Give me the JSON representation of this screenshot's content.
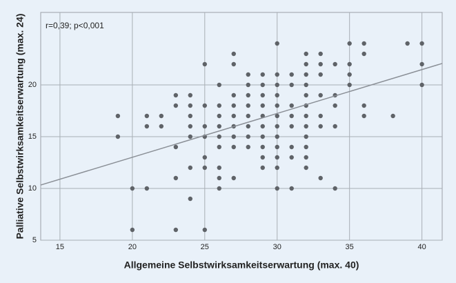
{
  "chart_data": {
    "type": "scatter",
    "xlabel": "Allgemeine Selbstwirksamkeitserwartung (max. 40)",
    "ylabel": "Palliative Selbstwirksamkeitserwartung (max. 24)",
    "annotation": "r=0,39; p<0,001",
    "color": "#5f6368",
    "grid": true,
    "xlim": [
      13.67,
      41.4
    ],
    "ylim": [
      5,
      27
    ],
    "xticks": [
      15,
      20,
      25,
      30,
      35,
      40
    ],
    "yticks": [
      5,
      10,
      15,
      20
    ],
    "x": [
      19,
      19,
      20,
      20,
      21,
      21,
      21,
      22,
      22,
      23,
      23,
      23,
      23,
      23,
      24,
      24,
      24,
      24,
      24,
      24,
      24,
      25,
      25,
      25,
      25,
      25,
      25,
      25,
      26,
      26,
      26,
      26,
      26,
      26,
      26,
      26,
      26,
      27,
      27,
      27,
      27,
      27,
      27,
      27,
      27,
      27,
      28,
      28,
      28,
      28,
      28,
      28,
      28,
      28,
      29,
      29,
      29,
      29,
      29,
      29,
      29,
      29,
      29,
      29,
      30,
      30,
      30,
      30,
      30,
      30,
      30,
      30,
      30,
      30,
      30,
      30,
      31,
      31,
      31,
      31,
      31,
      31,
      31,
      31,
      32,
      32,
      32,
      32,
      32,
      32,
      32,
      32,
      32,
      32,
      32,
      32,
      33,
      33,
      33,
      33,
      33,
      33,
      33,
      34,
      34,
      34,
      34,
      34,
      35,
      35,
      35,
      35,
      36,
      36,
      36,
      36,
      38,
      39,
      40,
      40,
      40
    ],
    "y": [
      17,
      15,
      10,
      6,
      17,
      16,
      10,
      17,
      16,
      19,
      18,
      14,
      11,
      6,
      19,
      18,
      17,
      16,
      15,
      12,
      9,
      22,
      18,
      16,
      15,
      13,
      12,
      6,
      20,
      18,
      17,
      16,
      15,
      14,
      12,
      11,
      10,
      23,
      22,
      19,
      18,
      17,
      16,
      15,
      14,
      11,
      21,
      20,
      19,
      18,
      17,
      16,
      15,
      14,
      21,
      20,
      19,
      18,
      17,
      16,
      15,
      14,
      13,
      12,
      24,
      21,
      20,
      19,
      18,
      17,
      16,
      15,
      14,
      13,
      12,
      10,
      21,
      20,
      18,
      17,
      16,
      14,
      13,
      10,
      23,
      22,
      21,
      20,
      19,
      18,
      17,
      16,
      15,
      14,
      13,
      12,
      23,
      22,
      21,
      19,
      17,
      16,
      11,
      22,
      19,
      18,
      16,
      10,
      24,
      22,
      21,
      20,
      24,
      23,
      18,
      17,
      17,
      24,
      24,
      22,
      20
    ],
    "fit": {
      "color": "#8a8f96",
      "x": [
        13.67,
        41.4
      ],
      "y": [
        10.33,
        22.07
      ]
    }
  }
}
